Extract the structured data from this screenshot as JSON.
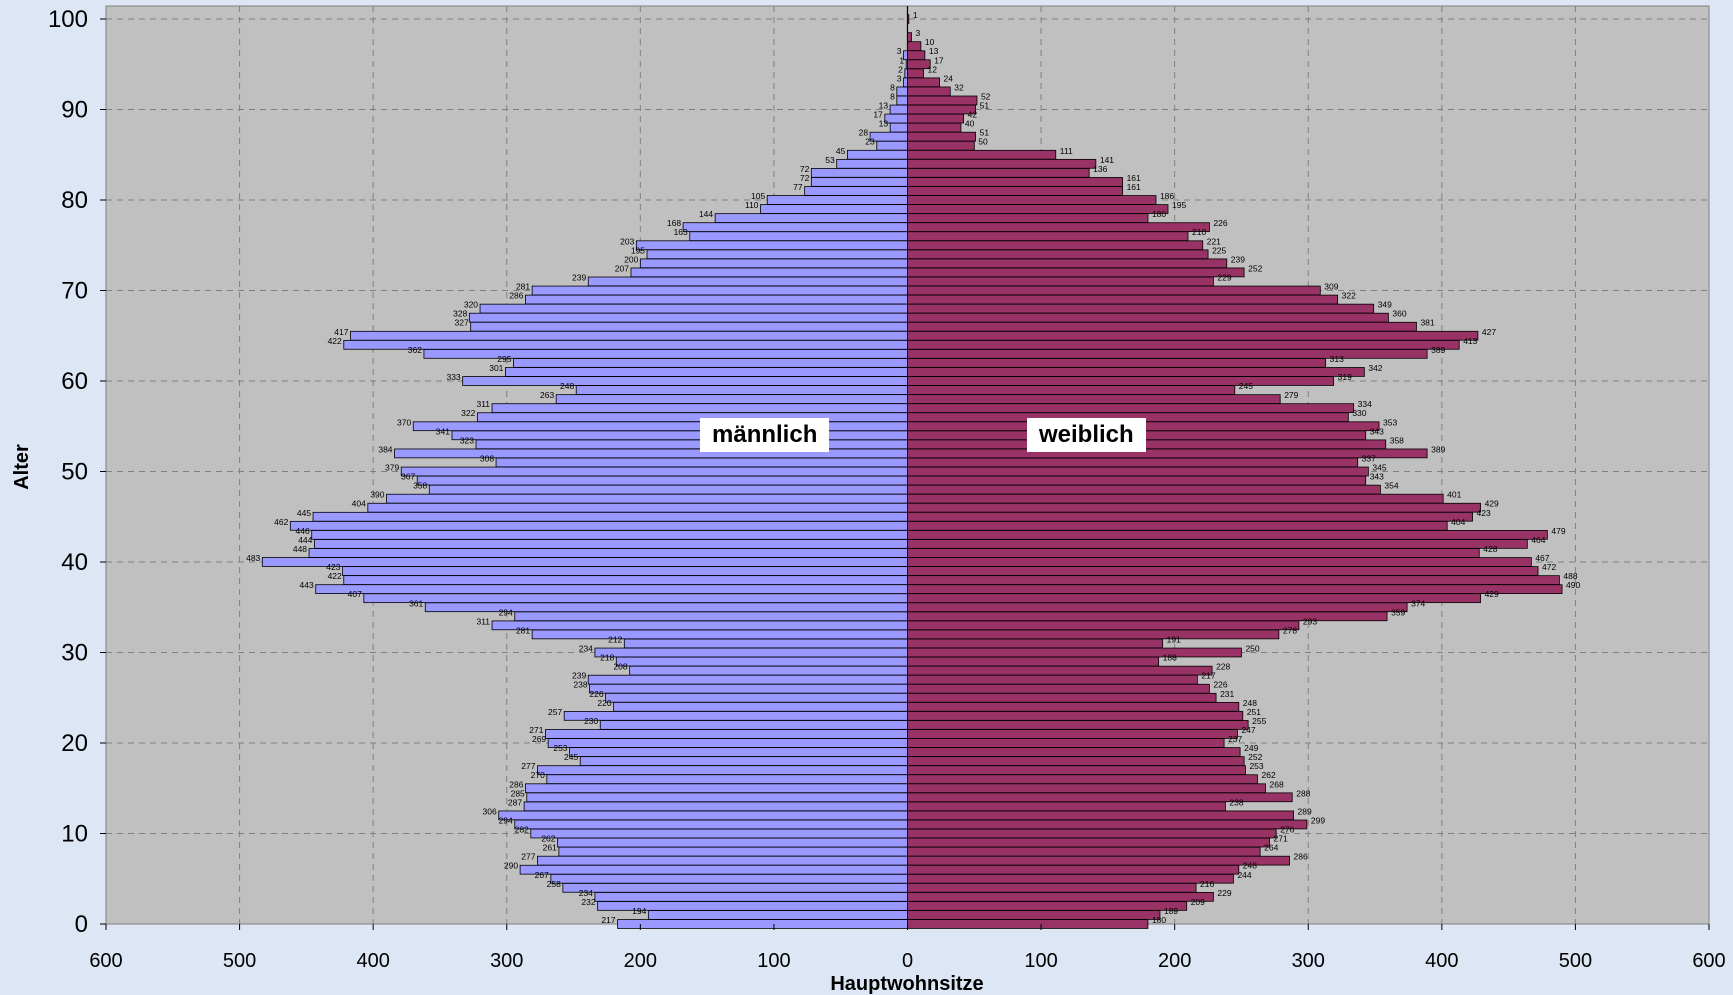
{
  "chart_data": {
    "type": "bar",
    "orientation": "horizontal",
    "chart_style": "population-pyramid",
    "xlabel": "Hauptwohnsitze",
    "ylabel": "Alter",
    "xlim": [
      -600,
      600
    ],
    "ylim": [
      0,
      100
    ],
    "x_ticks": [
      -600,
      -500,
      -400,
      -300,
      -200,
      -100,
      0,
      100,
      200,
      300,
      400,
      500,
      600
    ],
    "x_tick_labels": [
      "600",
      "500",
      "400",
      "300",
      "200",
      "100",
      "0",
      "100",
      "200",
      "300",
      "400",
      "500",
      "600"
    ],
    "y_ticks": [
      0,
      10,
      20,
      30,
      40,
      50,
      60,
      70,
      80,
      90,
      100
    ],
    "grid": true,
    "ages": [
      0,
      1,
      2,
      3,
      4,
      5,
      6,
      7,
      8,
      9,
      10,
      11,
      12,
      13,
      14,
      15,
      16,
      17,
      18,
      19,
      20,
      21,
      22,
      23,
      24,
      25,
      26,
      27,
      28,
      29,
      30,
      31,
      32,
      33,
      34,
      35,
      36,
      37,
      38,
      39,
      40,
      41,
      42,
      43,
      44,
      45,
      46,
      47,
      48,
      49,
      50,
      51,
      52,
      53,
      54,
      55,
      56,
      57,
      58,
      59,
      60,
      61,
      62,
      63,
      64,
      65,
      66,
      67,
      68,
      69,
      70,
      71,
      72,
      73,
      74,
      75,
      76,
      77,
      78,
      79,
      80,
      81,
      82,
      83,
      84,
      85,
      86,
      87,
      88,
      89,
      90,
      91,
      92,
      93,
      94,
      95,
      96,
      97,
      98,
      99,
      100
    ],
    "series": [
      {
        "name": "männlich",
        "color": "#9999ff",
        "values": [
          217,
          194,
          232,
          234,
          258,
          267,
          290,
          277,
          261,
          262,
          282,
          294,
          306,
          287,
          285,
          286,
          270,
          277,
          245,
          253,
          269,
          271,
          230,
          257,
          220,
          226,
          238,
          239,
          208,
          218,
          234,
          212,
          281,
          311,
          294,
          361,
          407,
          443,
          422,
          423,
          483,
          448,
          444,
          446,
          462,
          445,
          404,
          390,
          358,
          367,
          379,
          308,
          384,
          323,
          341,
          370,
          322,
          311,
          263,
          248,
          333,
          301,
          295,
          362,
          422,
          417,
          327,
          328,
          320,
          286,
          281,
          239,
          207,
          200,
          195,
          203,
          163,
          168,
          144,
          110,
          105,
          77,
          72,
          72,
          53,
          45,
          23,
          28,
          13,
          17,
          13,
          8,
          8,
          3,
          2,
          1,
          3,
          0,
          0,
          0,
          0
        ]
      },
      {
        "name": "weiblich",
        "color": "#993366",
        "values": [
          180,
          189,
          209,
          229,
          216,
          244,
          248,
          286,
          264,
          271,
          276,
          299,
          289,
          238,
          288,
          268,
          262,
          253,
          252,
          249,
          237,
          247,
          255,
          251,
          248,
          231,
          226,
          217,
          228,
          188,
          250,
          191,
          278,
          293,
          359,
          374,
          429,
          490,
          488,
          472,
          467,
          428,
          464,
          479,
          404,
          423,
          429,
          401,
          354,
          343,
          345,
          337,
          389,
          358,
          343,
          353,
          330,
          334,
          279,
          245,
          319,
          342,
          313,
          389,
          413,
          427,
          381,
          360,
          349,
          322,
          309,
          229,
          252,
          239,
          225,
          221,
          210,
          226,
          180,
          195,
          186,
          161,
          161,
          136,
          141,
          111,
          50,
          51,
          40,
          42,
          51,
          52,
          32,
          24,
          12,
          17,
          13,
          10,
          3,
          0,
          1
        ]
      }
    ]
  }
}
